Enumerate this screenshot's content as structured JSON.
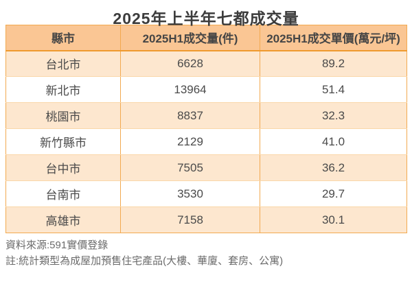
{
  "title": "2025年上半年七都成交量",
  "chart_data": {
    "type": "table",
    "title": "2025年上半年七都成交量",
    "columns": [
      "縣市",
      "2025H1成交量(件)",
      "2025H1成交單價(萬元/坪)"
    ],
    "rows": [
      [
        "台北市",
        "6628",
        "89.2"
      ],
      [
        "新北市",
        "13964",
        "51.4"
      ],
      [
        "桃園市",
        "8837",
        "32.3"
      ],
      [
        "新竹縣市",
        "2129",
        "41.0"
      ],
      [
        "台中市",
        "7505",
        "36.2"
      ],
      [
        "台南市",
        "3530",
        "29.7"
      ],
      [
        "高雄市",
        "7158",
        "30.1"
      ]
    ],
    "units": {
      "volume": "件",
      "unit_price": "萬元/坪"
    },
    "legend_position": "none",
    "grid": true
  },
  "footer": {
    "source": "資料來源:591實價登錄",
    "note": "註:統計類型為成屋加預售住宅產品(大樓、華廈、套房、公寓)"
  },
  "colors": {
    "header_bg": "#FAC694",
    "row_alt_bg": "#FDE7CF",
    "row_bg": "#FFFFFF",
    "border": "#F2A94F",
    "header_border": "#EF9A2E",
    "row_divider": "#FAD7A8",
    "title_text": "#3C3C3C",
    "cell_text": "#4A4A4A",
    "footer_text": "#6B6B6B"
  }
}
